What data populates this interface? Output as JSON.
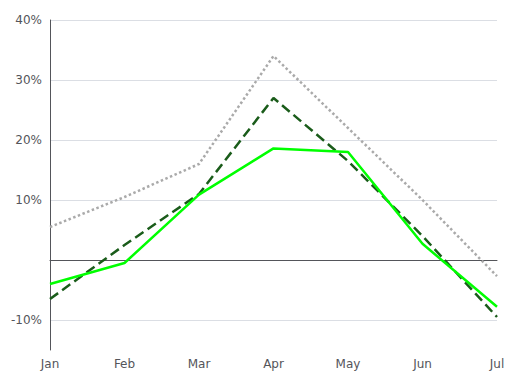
{
  "chart_data": {
    "type": "line",
    "categories": [
      "Jan",
      "Feb",
      "Mar",
      "Apr",
      "May",
      "Jun",
      "Jul"
    ],
    "series": [
      {
        "color": "#aaaaaa",
        "line_style": "dotted",
        "values": [
          5.5,
          10.5,
          16.0,
          34.0,
          22.0,
          10.0,
          -2.7
        ]
      },
      {
        "color": "#1a5c1a",
        "line_style": "dashed",
        "values": [
          -6.5,
          2.5,
          11.0,
          27.0,
          16.5,
          4.0,
          -9.5
        ]
      },
      {
        "color": "#00ff00",
        "line_style": "solid",
        "values": [
          -4.0,
          -0.5,
          10.9,
          18.6,
          18.0,
          2.7,
          -7.8
        ]
      }
    ],
    "ylim": [
      -15,
      40
    ],
    "yticks": [
      {
        "value": -10,
        "label": "-10%"
      },
      {
        "value": 0,
        "label": null
      },
      {
        "value": 10,
        "label": "10%"
      },
      {
        "value": 20,
        "label": "20%"
      },
      {
        "value": 30,
        "label": "30%"
      },
      {
        "value": 40,
        "label": "40%"
      }
    ],
    "grid": true
  }
}
